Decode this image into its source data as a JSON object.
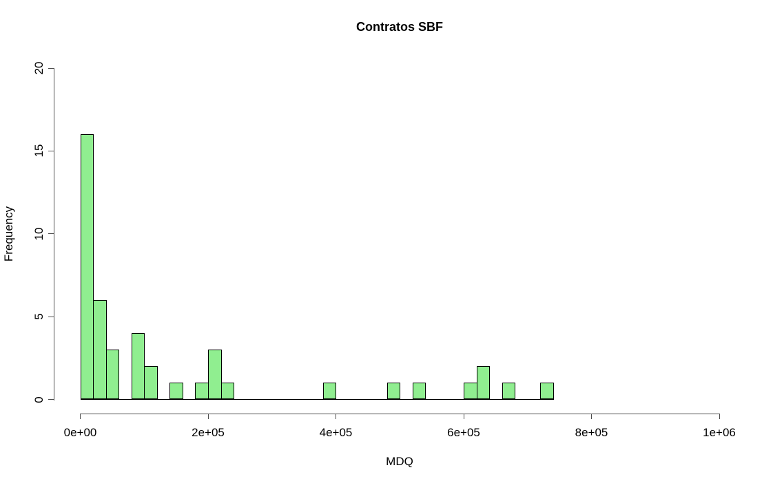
{
  "chart_data": {
    "type": "bar",
    "subtype": "histogram",
    "title": "Contratos SBF",
    "xlabel": "MDQ",
    "ylabel": "Frequency",
    "xlim": [
      0,
      1000000
    ],
    "ylim": [
      0,
      20
    ],
    "grid": false,
    "legend": null,
    "bin_start": 0,
    "bin_width": 20000,
    "counts": [
      16,
      6,
      3,
      0,
      4,
      2,
      0,
      1,
      0,
      1,
      3,
      1,
      0,
      0,
      0,
      0,
      0,
      0,
      0,
      1,
      0,
      0,
      0,
      0,
      1,
      0,
      1,
      0,
      0,
      0,
      1,
      2,
      0,
      1,
      0,
      0,
      1
    ],
    "x_ticks": {
      "values": [
        0,
        200000,
        400000,
        600000,
        800000,
        1000000
      ],
      "labels": [
        "0e+00",
        "2e+05",
        "4e+05",
        "6e+05",
        "8e+05",
        "1e+06"
      ]
    },
    "y_ticks": {
      "values": [
        0,
        5,
        10,
        15,
        20
      ],
      "labels": [
        "0",
        "5",
        "10",
        "15",
        "20"
      ]
    },
    "bar_fill": "#90EE90",
    "bar_border": "#000000",
    "axis_color": "#4d4d4d",
    "text_color": "#000000"
  }
}
